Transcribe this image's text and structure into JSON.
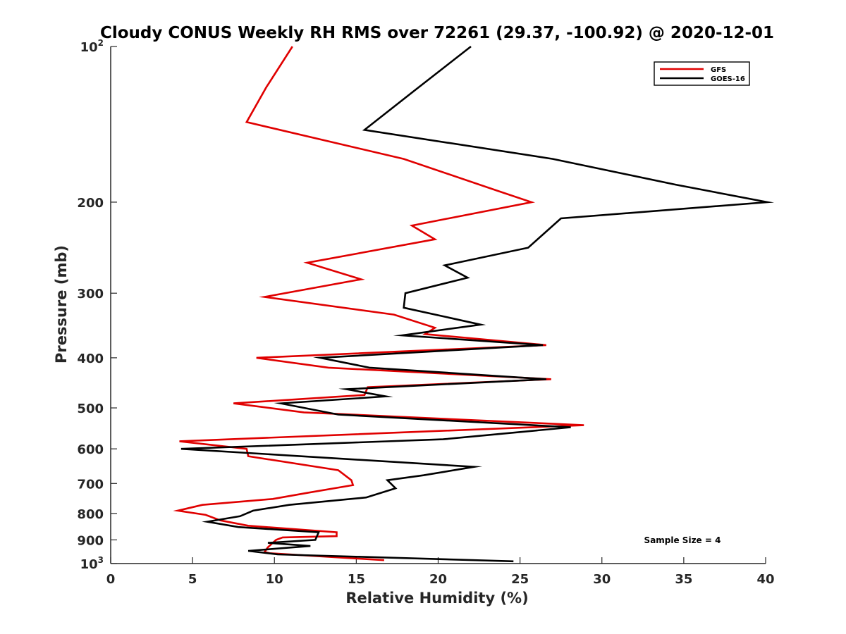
{
  "chart_data": {
    "type": "line",
    "title": "Cloudy CONUS Weekly RH RMS over 72261 (29.37, -100.92) @ 2020-12-01",
    "xlabel": "Relative Humidity (%)",
    "ylabel": "Pressure (mb)",
    "xlim": [
      0,
      40
    ],
    "ylim": [
      100,
      1000
    ],
    "yscale": "log",
    "y_reversed": true,
    "x_ticks": [
      0,
      5,
      10,
      15,
      20,
      25,
      30,
      35,
      40
    ],
    "x_tick_labels": [
      "0",
      "5",
      "10",
      "15",
      "20",
      "25",
      "30",
      "35",
      "40"
    ],
    "y_ticks": [
      {
        "value": 100,
        "base": "10",
        "exp": "2"
      },
      {
        "value": 200,
        "label": "200"
      },
      {
        "value": 300,
        "label": "300"
      },
      {
        "value": 400,
        "label": "400"
      },
      {
        "value": 500,
        "label": "500"
      },
      {
        "value": 600,
        "label": "600"
      },
      {
        "value": 700,
        "label": "700"
      },
      {
        "value": 800,
        "label": "800"
      },
      {
        "value": 900,
        "label": "900"
      },
      {
        "value": 1000,
        "base": "10",
        "exp": "3"
      }
    ],
    "legend_position": "top-right",
    "annotation": "Sample Size = 4",
    "series": [
      {
        "name": "GFS",
        "color": "#e00000",
        "x": [
          11.1,
          9.5,
          8.3,
          17.9,
          23.6,
          25.7,
          18.4,
          19.8,
          12.0,
          15.3,
          9.4,
          17.3,
          19.8,
          19.2,
          26.6,
          8.9,
          13.3,
          26.9,
          15.7,
          15.5,
          7.5,
          11.8,
          28.9,
          4.2,
          8.3,
          8.4,
          13.9,
          14.7,
          14.8,
          12.0,
          9.9,
          5.6,
          4.1,
          5.8,
          6.7,
          8.4,
          13.8,
          13.8,
          10.5,
          10.1,
          9.6,
          9.4,
          9.7,
          16.7
        ],
        "y": [
          100,
          120,
          140,
          165,
          190,
          200,
          222,
          236,
          262,
          282,
          305,
          330,
          350,
          360,
          378,
          400,
          418,
          440,
          456,
          472,
          490,
          510,
          540,
          580,
          600,
          620,
          660,
          690,
          705,
          730,
          750,
          770,
          790,
          805,
          825,
          845,
          870,
          885,
          890,
          900,
          930,
          950,
          955,
          985
        ]
      },
      {
        "name": "GOES-16",
        "color": "#000000",
        "x": [
          22.0,
          18.8,
          15.5,
          27.0,
          34.5,
          40.1,
          27.5,
          25.5,
          20.4,
          21.8,
          18.0,
          17.9,
          22.6,
          17.8,
          26.4,
          12.8,
          15.8,
          26.6,
          14.4,
          16.8,
          10.4,
          13.9,
          28.1,
          20.3,
          4.3,
          22.2,
          19.1,
          16.9,
          17.4,
          15.6,
          10.9,
          8.7,
          7.9,
          5.9,
          7.8,
          12.7,
          12.5,
          9.6,
          12.2,
          8.4,
          10.2,
          24.6
        ],
        "y": [
          100,
          120,
          145,
          165,
          185,
          200,
          215,
          245,
          265,
          280,
          300,
          320,
          345,
          362,
          378,
          400,
          418,
          440,
          460,
          475,
          490,
          515,
          545,
          575,
          600,
          650,
          675,
          690,
          715,
          745,
          770,
          790,
          810,
          830,
          850,
          870,
          900,
          912,
          925,
          945,
          960,
          990
        ]
      }
    ]
  }
}
